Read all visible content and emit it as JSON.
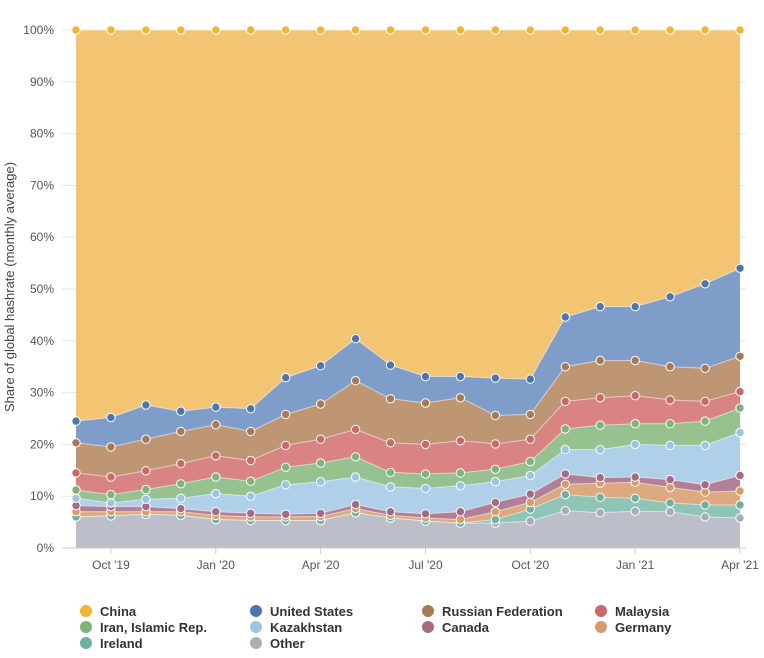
{
  "chart_data": {
    "type": "area",
    "stacking": "percent",
    "title": "",
    "xlabel": "",
    "ylabel": "Share of global hashrate (monthly average)",
    "ylim": [
      0,
      100
    ],
    "y_ticks": [
      "0%",
      "10%",
      "20%",
      "30%",
      "40%",
      "50%",
      "60%",
      "70%",
      "80%",
      "90%",
      "100%"
    ],
    "x_tick_labels": [
      "Oct '19",
      "Jan '20",
      "Apr '20",
      "Jul '20",
      "Oct '20",
      "Jan '21",
      "Apr '21"
    ],
    "x_tick_indices": [
      1,
      4,
      7,
      10,
      13,
      16,
      19
    ],
    "categories": [
      "Sep '19",
      "Oct '19",
      "Nov '19",
      "Dec '19",
      "Jan '20",
      "Feb '20",
      "Mar '20",
      "Apr '20",
      "May '20",
      "Jun '20",
      "Jul '20",
      "Aug '20",
      "Sep '20",
      "Oct '20",
      "Nov '20",
      "Dec '20",
      "Jan '21",
      "Feb '21",
      "Mar '21",
      "Apr '21"
    ],
    "series": [
      {
        "name": "Other",
        "color": "#bcbfc9",
        "cumulative": [
          6.0,
          6.2,
          6.5,
          6.3,
          5.5,
          5.3,
          5.3,
          5.3,
          6.8,
          5.8,
          5.2,
          4.8,
          4.8,
          5.2,
          7.2,
          6.8,
          7.1,
          7.0,
          6.0,
          5.8
        ]
      },
      {
        "name": "Ireland",
        "color": "#8fc5b6",
        "cumulative": [
          6.0,
          6.2,
          6.5,
          6.3,
          5.5,
          5.3,
          5.3,
          5.3,
          6.8,
          5.8,
          5.2,
          4.8,
          5.5,
          7.5,
          10.3,
          9.8,
          9.6,
          8.7,
          8.3,
          8.3
        ]
      },
      {
        "name": "Germany",
        "color": "#dda97f",
        "cumulative": [
          7.0,
          7.0,
          7.0,
          7.0,
          6.3,
          6.0,
          6.0,
          6.1,
          7.6,
          6.3,
          5.8,
          5.5,
          7.0,
          8.8,
          12.3,
          12.5,
          12.7,
          11.7,
          10.8,
          11.0
        ]
      },
      {
        "name": "Canada",
        "color": "#b18097",
        "cumulative": [
          8.2,
          8.0,
          8.0,
          7.6,
          7.0,
          6.7,
          6.5,
          6.7,
          8.4,
          7.0,
          6.6,
          7.0,
          8.8,
          10.4,
          14.3,
          13.6,
          13.7,
          13.2,
          12.2,
          14.0
        ]
      },
      {
        "name": "Kazakhstan",
        "color": "#b0cfe9",
        "cumulative": [
          9.6,
          8.7,
          9.4,
          9.6,
          10.5,
          10.0,
          12.2,
          12.8,
          13.7,
          11.8,
          11.5,
          12.0,
          12.8,
          14.0,
          19.0,
          19.0,
          20.0,
          19.8,
          19.8,
          22.3
        ]
      },
      {
        "name": "Iran, Islamic Rep.",
        "color": "#96c290",
        "cumulative": [
          11.2,
          10.3,
          11.3,
          12.4,
          13.7,
          12.9,
          15.6,
          16.4,
          17.6,
          14.6,
          14.3,
          14.5,
          15.2,
          16.7,
          23.0,
          23.7,
          24.0,
          24.0,
          24.5,
          27.0
        ]
      },
      {
        "name": "Malaysia",
        "color": "#d98383",
        "cumulative": [
          14.5,
          13.7,
          14.9,
          16.3,
          17.8,
          16.9,
          19.8,
          21.0,
          22.9,
          20.3,
          20.0,
          20.7,
          20.1,
          21.0,
          28.3,
          29.0,
          29.4,
          28.6,
          28.3,
          30.2
        ]
      },
      {
        "name": "Russian Federation",
        "color": "#bf9674",
        "cumulative": [
          20.3,
          19.5,
          21.0,
          22.5,
          23.8,
          22.5,
          25.8,
          27.8,
          32.3,
          28.8,
          28.0,
          29.0,
          25.6,
          25.8,
          35.0,
          36.2,
          36.2,
          35.0,
          34.7,
          37.0
        ]
      },
      {
        "name": "United States",
        "color": "#7e9ec9",
        "cumulative": [
          24.5,
          25.2,
          27.6,
          26.4,
          27.2,
          26.9,
          32.9,
          35.2,
          40.4,
          35.3,
          33.1,
          33.1,
          32.8,
          32.6,
          44.6,
          46.6,
          46.6,
          48.5,
          51.0,
          54.0
        ]
      },
      {
        "name": "China",
        "color": "#f3c572",
        "cumulative": [
          100,
          100,
          100,
          100,
          100,
          100,
          100,
          100,
          100,
          100,
          100,
          100,
          100,
          100,
          100,
          100,
          100,
          100,
          100,
          100
        ]
      }
    ]
  },
  "marker_colors": {
    "Other": "#a9adb8",
    "Ireland": "#6fb1a0",
    "Germany": "#d99b67",
    "Canada": "#a46a86",
    "Kazakhstan": "#9cc4e4",
    "Iran, Islamic Rep.": "#7fb478",
    "Malaysia": "#cb6868",
    "Russian Federation": "#a77a56",
    "United States": "#4e75b0",
    "China": "#f0b632"
  },
  "legend": {
    "items": [
      {
        "label": "China",
        "color": "#f0b632"
      },
      {
        "label": "United States",
        "color": "#4e75b0"
      },
      {
        "label": "Russian Federation",
        "color": "#a77a56"
      },
      {
        "label": "Malaysia",
        "color": "#cb6868"
      },
      {
        "label": "Iran, Islamic Rep.",
        "color": "#7fb478"
      },
      {
        "label": "Kazakhstan",
        "color": "#9cc4e4"
      },
      {
        "label": "Canada",
        "color": "#a46a86"
      },
      {
        "label": "Germany",
        "color": "#d99b67"
      },
      {
        "label": "Ireland",
        "color": "#6fb1a0"
      },
      {
        "label": "Other",
        "color": "#a9adb8"
      }
    ]
  }
}
